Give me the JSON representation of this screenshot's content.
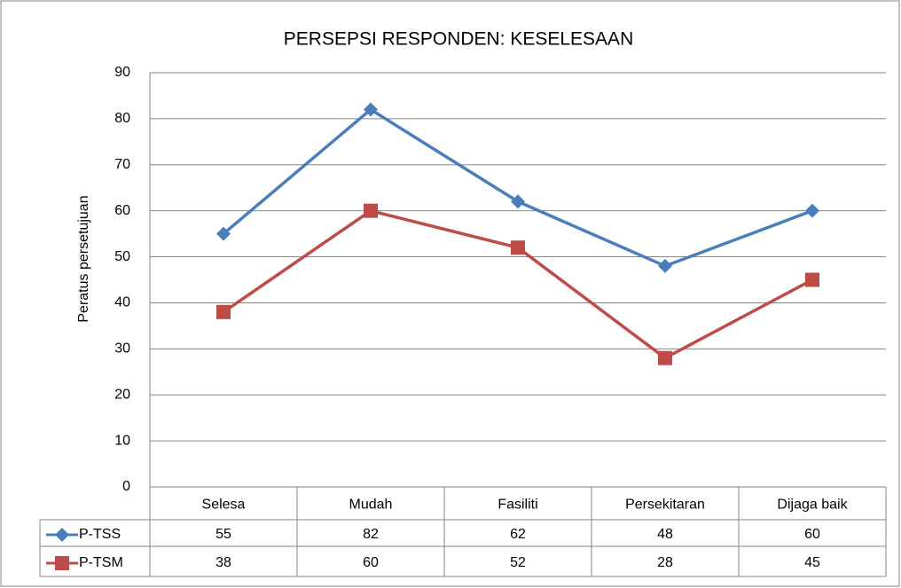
{
  "chart_data": {
    "type": "line",
    "title": "PERSEPSI RESPONDEN: KESELESAAN",
    "y_label": "Peratus persetujuan",
    "categories": [
      "Selesa",
      "Mudah",
      "Fasiliti",
      "Persekitaran",
      "Dijaga baik"
    ],
    "series": [
      {
        "name": "P-TSS",
        "color": "#4a7ebb",
        "marker": "diamond",
        "values": [
          55,
          82,
          62,
          48,
          60
        ]
      },
      {
        "name": "P-TSM",
        "color": "#be4b48",
        "marker": "square",
        "values": [
          38,
          60,
          52,
          28,
          45
        ]
      }
    ],
    "ylim": [
      0,
      90
    ],
    "yticks": [
      0,
      10,
      20,
      30,
      40,
      50,
      60,
      70,
      80,
      90
    ],
    "grid": true,
    "data_table": true
  }
}
